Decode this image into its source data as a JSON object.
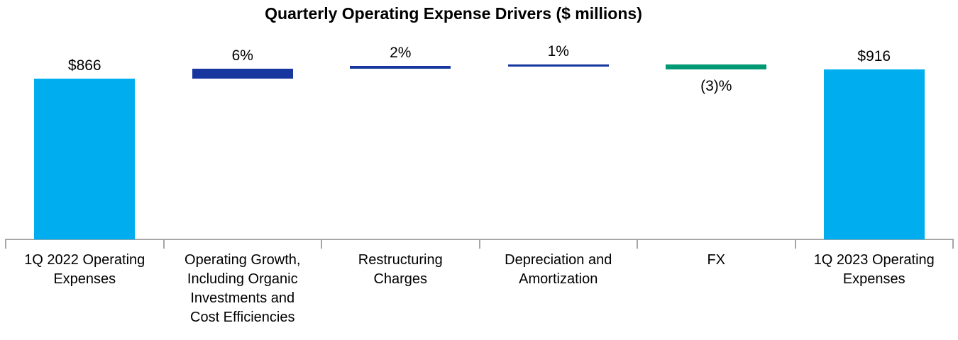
{
  "chart_data": {
    "type": "bar",
    "subtype": "waterfall",
    "title": "Quarterly Operating Expense Drivers ($ millions)",
    "unit": "$ millions",
    "start_value": 866,
    "end_value": 916,
    "legend": "none",
    "grid": false,
    "categories": [
      "1Q 2022 Operating\nExpenses",
      "Operating Growth,\nIncluding Organic\nInvestments and\nCost Efficiencies",
      "Restructuring\nCharges",
      "Depreciation and\nAmortization",
      "FX",
      "1Q 2023 Operating\nExpenses"
    ],
    "bars": [
      {
        "category": "1Q 2022 Operating\nExpenses",
        "role": "total",
        "value": 866,
        "label": "$866",
        "label_side": "above",
        "color_key": "cyan"
      },
      {
        "category": "Operating Growth,\nIncluding Organic\nInvestments and\nCost Efficiencies",
        "role": "delta",
        "value": 52,
        "label": "6%",
        "label_side": "above",
        "color_key": "navy"
      },
      {
        "category": "Restructuring\nCharges",
        "role": "delta",
        "value": 17,
        "label": "2%",
        "label_side": "above",
        "color_key": "navy"
      },
      {
        "category": "Depreciation and\nAmortization",
        "role": "delta",
        "value": 9,
        "label": "1%",
        "label_side": "above",
        "color_key": "navy"
      },
      {
        "category": "FX",
        "role": "delta",
        "value": -28,
        "label": "(3)%",
        "label_side": "below",
        "color_key": "green"
      },
      {
        "category": "1Q 2023 Operating\nExpenses",
        "role": "total",
        "value": 916,
        "label": "$916",
        "label_side": "above",
        "color_key": "cyan"
      }
    ],
    "colors": {
      "cyan": "#00AEEF",
      "navy": "#17379E",
      "green": "#009973",
      "axis": "#A6A6A6",
      "text": "#000000"
    }
  }
}
